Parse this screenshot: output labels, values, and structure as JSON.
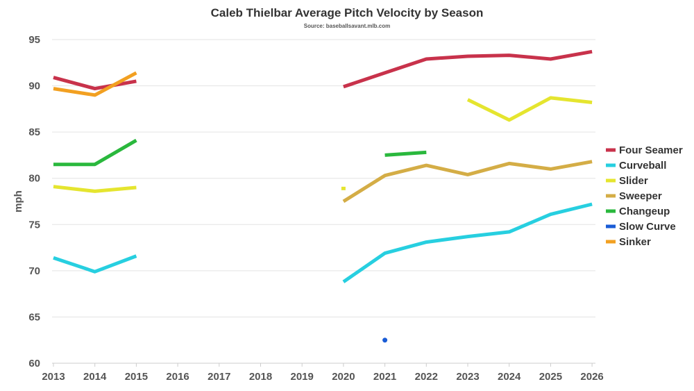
{
  "chart_data": {
    "type": "line",
    "title": "Caleb Thielbar Average Pitch Velocity by Season",
    "subtitle": "Source: baseballsavant.mlb.com",
    "xlabel": "",
    "ylabel": "mph",
    "ylim": [
      60,
      95
    ],
    "yticks": [
      60,
      65,
      70,
      75,
      80,
      85,
      90,
      95
    ],
    "categories": [
      "2013",
      "2014",
      "2015",
      "2016",
      "2017",
      "2018",
      "2019",
      "2020",
      "2021",
      "2022",
      "2023",
      "2024",
      "2025",
      "2026"
    ],
    "legend_position": "right",
    "series": [
      {
        "name": "Four Seamer",
        "color": "#c8324b",
        "values": [
          90.9,
          89.7,
          90.5,
          null,
          null,
          null,
          null,
          89.9,
          91.4,
          92.9,
          93.2,
          93.3,
          92.9,
          93.7
        ]
      },
      {
        "name": "Curveball",
        "color": "#27cfe0",
        "values": [
          71.4,
          69.9,
          71.6,
          null,
          null,
          null,
          null,
          68.8,
          71.9,
          73.1,
          73.7,
          74.2,
          76.1,
          77.2
        ]
      },
      {
        "name": "Slider",
        "color": "#e5e52f",
        "values": [
          79.1,
          78.6,
          79.0,
          null,
          null,
          null,
          null,
          78.9,
          null,
          null,
          88.5,
          86.3,
          88.7,
          88.2
        ]
      },
      {
        "name": "Sweeper",
        "color": "#d4ad46",
        "values": [
          null,
          null,
          null,
          null,
          null,
          null,
          null,
          77.5,
          80.3,
          81.4,
          80.4,
          81.6,
          81.0,
          81.8
        ]
      },
      {
        "name": "Changeup",
        "color": "#2ab83d",
        "values": [
          81.5,
          81.5,
          84.1,
          null,
          null,
          null,
          null,
          null,
          82.5,
          82.8,
          null,
          null,
          null,
          null
        ]
      },
      {
        "name": "Slow Curve",
        "color": "#1a5cd6",
        "values": [
          null,
          null,
          null,
          null,
          null,
          null,
          null,
          null,
          62.5,
          null,
          null,
          null,
          null,
          null
        ]
      },
      {
        "name": "Sinker",
        "color": "#f2a021",
        "values": [
          89.7,
          89.0,
          91.4,
          null,
          null,
          null,
          null,
          null,
          null,
          null,
          null,
          null,
          null,
          null
        ]
      }
    ]
  }
}
